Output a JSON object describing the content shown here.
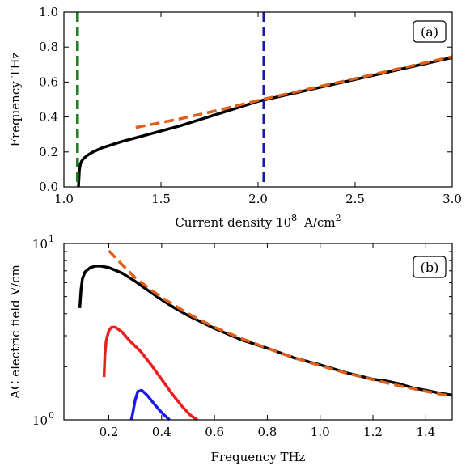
{
  "chart_data": [
    {
      "type": "line",
      "panel_label": "(a)",
      "xlabel": "Current density 10",
      "xlabel_sup": "8",
      "xlabel_unit": "A/cm",
      "xlabel_unit_sup": "2",
      "ylabel": "Frequency THz",
      "xlim": [
        1.0,
        3.0
      ],
      "ylim": [
        0.0,
        1.0
      ],
      "xticks": [
        "1.0",
        "1.5",
        "2.0",
        "2.5",
        "3.0"
      ],
      "yticks": [
        "0.0",
        "0.2",
        "0.4",
        "0.6",
        "0.8",
        "1.0"
      ],
      "series": [
        {
          "color": "#000000",
          "style": "solid",
          "x": [
            1.075,
            1.078,
            1.08,
            1.085,
            1.09,
            1.1,
            1.12,
            1.15,
            1.2,
            1.3,
            1.4,
            1.5,
            1.6,
            1.8,
            2.0,
            2.2,
            2.4,
            2.6,
            2.8,
            3.0
          ],
          "y": [
            0.0,
            0.06,
            0.1,
            0.13,
            0.145,
            0.16,
            0.18,
            0.2,
            0.225,
            0.26,
            0.29,
            0.32,
            0.35,
            0.42,
            0.49,
            0.54,
            0.59,
            0.64,
            0.69,
            0.74
          ]
        },
        {
          "color": "#e0601a",
          "style": "dashed",
          "x": [
            1.37,
            1.6,
            1.8,
            2.0,
            2.2,
            2.4,
            2.6,
            2.8,
            3.0
          ],
          "y": [
            0.34,
            0.39,
            0.44,
            0.495,
            0.545,
            0.595,
            0.645,
            0.695,
            0.745
          ]
        },
        {
          "color": "#1f7a1f",
          "style": "dashed",
          "vline": 1.07
        },
        {
          "color": "#1a1aa0",
          "style": "dashed",
          "vline": 2.03
        }
      ]
    },
    {
      "type": "line",
      "panel_label": "(b)",
      "xlabel": "Frequency THz",
      "ylabel": "AC electric field V/cm",
      "yscale": "log",
      "xlim": [
        0.03,
        1.5
      ],
      "ylim": [
        1,
        10
      ],
      "xticks": [
        "0.2",
        "0.4",
        "0.6",
        "0.8",
        "1.0",
        "1.2",
        "1.4"
      ],
      "xtick_values": [
        0.2,
        0.4,
        0.6,
        0.8,
        1.0,
        1.2,
        1.4
      ],
      "yticks_base": "10",
      "yticks_exp": [
        "0",
        "1"
      ],
      "series": [
        {
          "color": "#000000",
          "style": "solid",
          "x": [
            0.09,
            0.095,
            0.1,
            0.11,
            0.13,
            0.15,
            0.17,
            0.2,
            0.25,
            0.3,
            0.35,
            0.4,
            0.45,
            0.5,
            0.6,
            0.7,
            0.8,
            0.9,
            1.0,
            1.1,
            1.2,
            1.25,
            1.3,
            1.35,
            1.4,
            1.45,
            1.5
          ],
          "y": [
            4.3,
            5.5,
            6.3,
            6.9,
            7.3,
            7.45,
            7.45,
            7.3,
            6.8,
            6.1,
            5.4,
            4.8,
            4.3,
            3.9,
            3.3,
            2.85,
            2.55,
            2.25,
            2.05,
            1.85,
            1.7,
            1.66,
            1.6,
            1.52,
            1.47,
            1.42,
            1.38
          ]
        },
        {
          "color": "#e0601a",
          "style": "dashed",
          "x": [
            0.2,
            0.25,
            0.3,
            0.35,
            0.4,
            0.5,
            0.6,
            0.7,
            0.8,
            0.9,
            1.0,
            1.1,
            1.2,
            1.3,
            1.4,
            1.5
          ],
          "y": [
            9.1,
            7.6,
            6.4,
            5.6,
            4.95,
            4.0,
            3.35,
            2.9,
            2.55,
            2.25,
            2.03,
            1.84,
            1.69,
            1.56,
            1.45,
            1.36
          ]
        },
        {
          "color": "#ee1c1c",
          "style": "solid",
          "x": [
            0.182,
            0.185,
            0.19,
            0.2,
            0.21,
            0.225,
            0.25,
            0.28,
            0.32,
            0.36,
            0.4,
            0.44,
            0.48,
            0.51,
            0.535
          ],
          "y": [
            1.75,
            2.3,
            2.8,
            3.2,
            3.35,
            3.35,
            3.15,
            2.8,
            2.45,
            2.05,
            1.7,
            1.4,
            1.18,
            1.06,
            1.0
          ]
        },
        {
          "color": "#1a1aee",
          "style": "solid",
          "x": [
            0.285,
            0.29,
            0.3,
            0.31,
            0.325,
            0.345,
            0.37,
            0.4,
            0.43
          ],
          "y": [
            1.0,
            1.08,
            1.3,
            1.45,
            1.47,
            1.38,
            1.24,
            1.1,
            1.0
          ]
        }
      ]
    }
  ]
}
